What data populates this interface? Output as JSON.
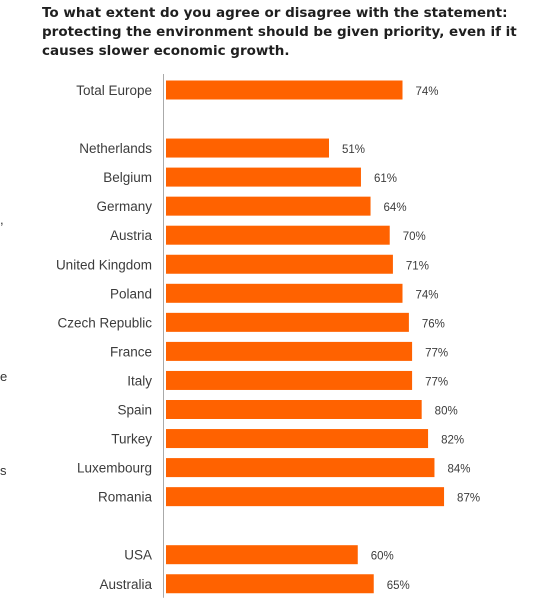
{
  "title": "To what extent do you agree or disagree with the statement: protecting the environment should be given priority, even if it causes slower economic growth.",
  "margin_fragments": [
    ",",
    "e",
    "s"
  ],
  "colors": {
    "bar": "#ff6200",
    "axis": "#aaaaaa"
  },
  "chart_data": {
    "type": "bar",
    "orientation": "horizontal",
    "title": "To what extent do you agree or disagree with the statement: protecting the environment should be given priority, even if it causes slower economic growth.",
    "xlabel": "",
    "ylabel": "",
    "xlim": [
      0,
      100
    ],
    "grid": false,
    "value_suffix": "%",
    "groups": [
      {
        "categories": [
          "Total Europe"
        ],
        "values": [
          74
        ],
        "labels": [
          "74%"
        ]
      },
      {
        "categories": [
          "Netherlands",
          "Belgium",
          "Germany",
          "Austria",
          "United Kingdom",
          "Poland",
          "Czech Republic",
          "France",
          "Italy",
          "Spain",
          "Turkey",
          "Luxembourg",
          "Romania"
        ],
        "values": [
          51,
          61,
          64,
          70,
          71,
          74,
          76,
          77,
          77,
          80,
          82,
          84,
          87
        ],
        "labels": [
          "51%",
          "61%",
          "64%",
          "70%",
          "71%",
          "74%",
          "76%",
          "77%",
          "77%",
          "80%",
          "82%",
          "84%",
          "87%"
        ]
      },
      {
        "categories": [
          "USA",
          "Australia"
        ],
        "values": [
          60,
          65
        ],
        "labels": [
          "60%",
          "65%"
        ]
      }
    ]
  }
}
